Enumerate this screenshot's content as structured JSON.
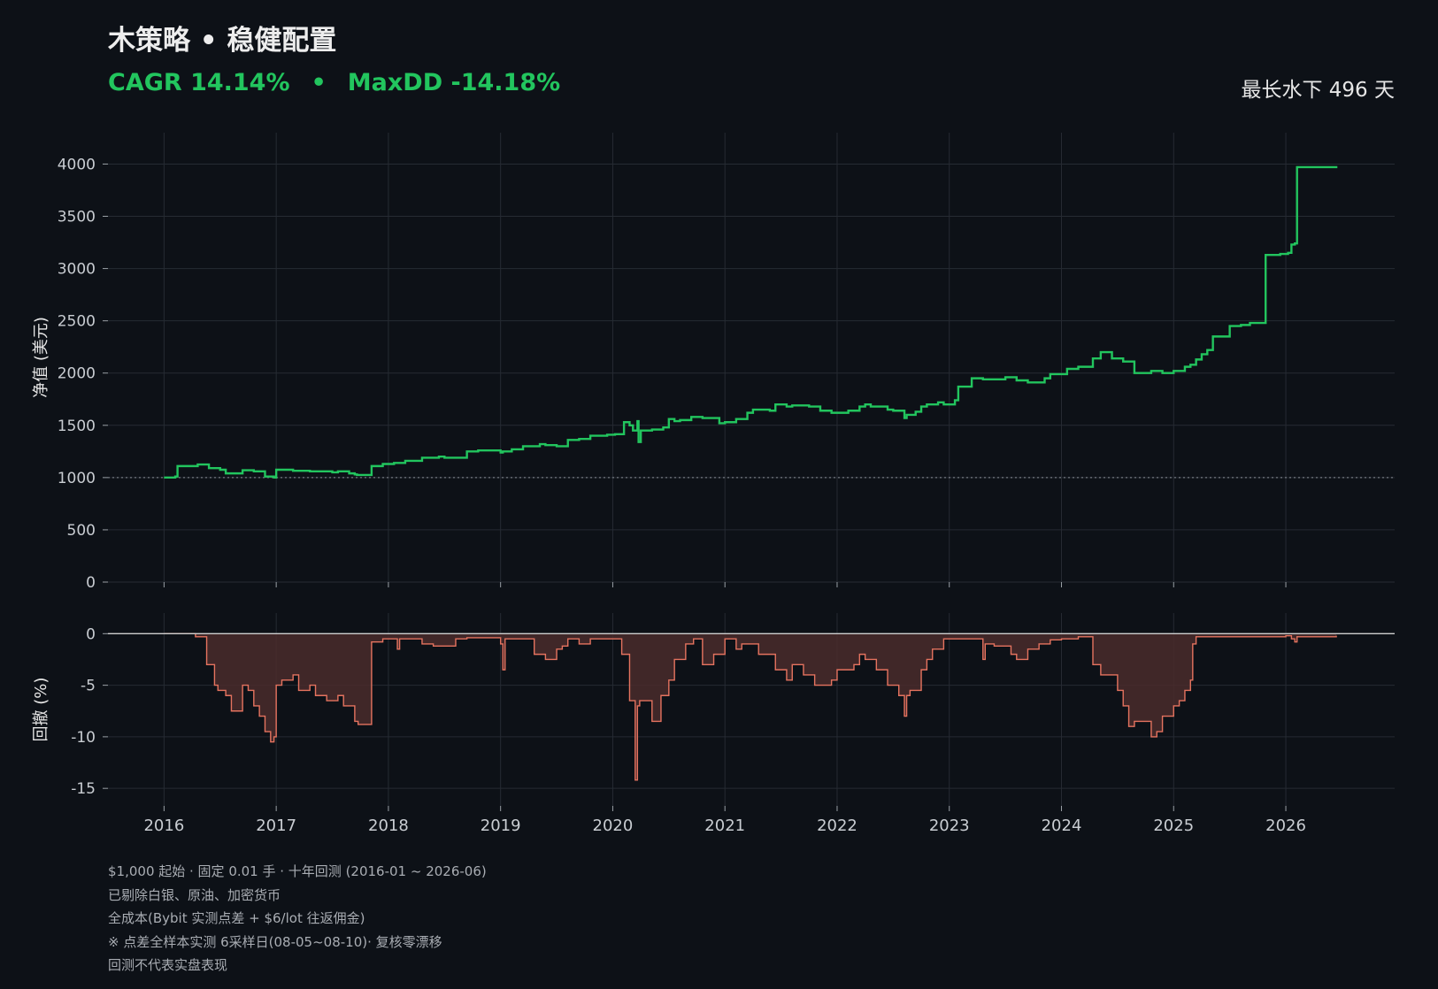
{
  "header": {
    "title": "木策略 • 稳健配置",
    "cagr": "CAGR 14.14%",
    "separator": "•",
    "maxdd": "MaxDD -14.18%",
    "underwater": "最长水下 496 天"
  },
  "footnotes": [
    "$1,000 起始 · 固定 0.01 手 · 十年回测 (2016-01 ~ 2026-06)",
    "已剔除白银、原油、加密货币",
    "全成本(Bybit 实测点差 + $6/lot 往返佣金)",
    "※ 点差全样本实测 6采样日(08-05~08-10)· 复核零漂移",
    "回测不代表实盘表现"
  ],
  "colors": {
    "background": "#0d1117",
    "equity_line": "#22c55e",
    "drawdown_line": "#e5735f",
    "drawdown_fill": "#4a2b2b",
    "grid": "#262b33",
    "text": "#e6e6e6"
  },
  "chart_data": [
    {
      "type": "line",
      "ylabel": "净值 (美元)",
      "xlabel": "",
      "xlim": [
        2015.5,
        2026.97
      ],
      "ylim": [
        0,
        4300
      ],
      "yticks": [
        0,
        500,
        1000,
        1500,
        2000,
        2500,
        3000,
        3500,
        4000
      ],
      "xticks": [
        2016,
        2017,
        2018,
        2019,
        2020,
        2021,
        2022,
        2023,
        2024,
        2025,
        2026
      ],
      "xtick_labels": [
        "2016",
        "2017",
        "2018",
        "2019",
        "2020",
        "2021",
        "2022",
        "2023",
        "2024",
        "2025",
        "2026"
      ],
      "reference_line": 1000,
      "grid": true,
      "series": [
        {
          "x": [
            2016.0,
            2016.1,
            2016.12,
            2016.3,
            2016.4,
            2016.5,
            2016.55,
            2016.7,
            2016.8,
            2016.9,
            2016.98,
            2017.0,
            2017.15,
            2017.3,
            2017.4,
            2017.5,
            2017.55,
            2017.65,
            2017.7,
            2017.72,
            2017.85,
            2017.95,
            2018.05,
            2018.15,
            2018.3,
            2018.45,
            2018.5,
            2018.7,
            2018.8,
            2019.0,
            2019.02,
            2019.1,
            2019.2,
            2019.35,
            2019.4,
            2019.5,
            2019.6,
            2019.7,
            2019.8,
            2019.95,
            2020.02,
            2020.1,
            2020.15,
            2020.18,
            2020.2,
            2020.22,
            2020.23,
            2020.25,
            2020.35,
            2020.45,
            2020.5,
            2020.55,
            2020.6,
            2020.7,
            2020.8,
            2020.95,
            2021.0,
            2021.1,
            2021.2,
            2021.25,
            2021.4,
            2021.45,
            2021.55,
            2021.6,
            2021.75,
            2021.85,
            2021.95,
            2022.0,
            2022.1,
            2022.2,
            2022.25,
            2022.3,
            2022.45,
            2022.5,
            2022.6,
            2022.62,
            2022.7,
            2022.75,
            2022.8,
            2022.9,
            2022.95,
            2023.05,
            2023.08,
            2023.2,
            2023.3,
            2023.5,
            2023.6,
            2023.7,
            2023.85,
            2023.9,
            2024.05,
            2024.15,
            2024.25,
            2024.28,
            2024.35,
            2024.45,
            2024.55,
            2024.65,
            2024.8,
            2024.9,
            2025.0,
            2025.1,
            2025.15,
            2025.2,
            2025.25,
            2025.3,
            2025.35,
            2025.5,
            2025.6,
            2025.68,
            2025.8,
            2025.82,
            2025.95,
            2026.02,
            2026.05,
            2026.08,
            2026.1,
            2026.2,
            2026.3,
            2026.45
          ],
          "values": [
            1000,
            1010,
            1110,
            1125,
            1090,
            1075,
            1040,
            1070,
            1060,
            1010,
            1000,
            1075,
            1065,
            1060,
            1060,
            1050,
            1060,
            1040,
            1030,
            1025,
            1110,
            1130,
            1140,
            1160,
            1190,
            1200,
            1190,
            1250,
            1260,
            1240,
            1250,
            1270,
            1300,
            1320,
            1310,
            1300,
            1360,
            1370,
            1400,
            1410,
            1415,
            1530,
            1500,
            1450,
            1450,
            1540,
            1340,
            1450,
            1460,
            1480,
            1560,
            1540,
            1550,
            1580,
            1570,
            1520,
            1530,
            1560,
            1620,
            1650,
            1640,
            1700,
            1680,
            1690,
            1680,
            1640,
            1620,
            1620,
            1640,
            1680,
            1700,
            1680,
            1650,
            1640,
            1570,
            1600,
            1630,
            1680,
            1700,
            1720,
            1700,
            1740,
            1870,
            1950,
            1940,
            1960,
            1930,
            1910,
            1950,
            1990,
            2040,
            2060,
            2060,
            2140,
            2200,
            2140,
            2110,
            2000,
            2020,
            2000,
            2020,
            2060,
            2080,
            2130,
            2180,
            2220,
            2350,
            2450,
            2460,
            2480,
            2480,
            3130,
            3140,
            3150,
            3230,
            3240,
            3970,
            3970,
            3970,
            3980
          ]
        }
      ]
    },
    {
      "type": "area",
      "ylabel": "回撤 (%)",
      "xlabel": "",
      "xlim": [
        2015.5,
        2026.97
      ],
      "ylim": [
        -16.7,
        2
      ],
      "yticks": [
        0,
        -5,
        -10,
        -15
      ],
      "ytick_labels": [
        "0",
        "-5",
        "-10",
        "-15"
      ],
      "xticks": [
        2016,
        2017,
        2018,
        2019,
        2020,
        2021,
        2022,
        2023,
        2024,
        2025,
        2026
      ],
      "xtick_labels": [
        "2016",
        "2017",
        "2018",
        "2019",
        "2020",
        "2021",
        "2022",
        "2023",
        "2024",
        "2025",
        "2026"
      ],
      "grid": true,
      "series": [
        {
          "x": [
            2016.0,
            2016.28,
            2016.38,
            2016.45,
            2016.48,
            2016.55,
            2016.6,
            2016.7,
            2016.75,
            2016.8,
            2016.85,
            2016.9,
            2016.95,
            2016.98,
            2017.0,
            2017.05,
            2017.15,
            2017.2,
            2017.3,
            2017.35,
            2017.45,
            2017.55,
            2017.6,
            2017.7,
            2017.73,
            2017.85,
            2017.95,
            2017.97,
            2018.08,
            2018.1,
            2018.3,
            2018.4,
            2018.6,
            2018.7,
            2019.0,
            2019.02,
            2019.04,
            2019.3,
            2019.4,
            2019.5,
            2019.55,
            2019.6,
            2019.7,
            2019.8,
            2020.0,
            2020.08,
            2020.15,
            2020.2,
            2020.22,
            2020.24,
            2020.28,
            2020.35,
            2020.43,
            2020.5,
            2020.55,
            2020.65,
            2020.72,
            2020.8,
            2020.9,
            2021.0,
            2021.05,
            2021.1,
            2021.15,
            2021.3,
            2021.45,
            2021.55,
            2021.6,
            2021.7,
            2021.8,
            2021.95,
            2022.0,
            2022.15,
            2022.2,
            2022.25,
            2022.35,
            2022.45,
            2022.55,
            2022.6,
            2022.62,
            2022.65,
            2022.75,
            2022.8,
            2022.85,
            2022.95,
            2023.05,
            2023.3,
            2023.32,
            2023.4,
            2023.55,
            2023.6,
            2023.7,
            2023.8,
            2023.9,
            2024.0,
            2024.05,
            2024.15,
            2024.25,
            2024.28,
            2024.35,
            2024.5,
            2024.55,
            2024.6,
            2024.65,
            2024.8,
            2024.85,
            2024.9,
            2025.0,
            2025.05,
            2025.1,
            2025.15,
            2025.17,
            2025.2,
            2026.0,
            2026.05,
            2026.08,
            2026.1,
            2026.45
          ],
          "values": [
            0,
            -0.3,
            -3.0,
            -5.0,
            -5.5,
            -6.0,
            -7.5,
            -5.0,
            -5.5,
            -7.0,
            -8.0,
            -9.5,
            -10.5,
            -10.0,
            -5.0,
            -4.5,
            -4.0,
            -5.5,
            -5.0,
            -6.0,
            -6.5,
            -6.0,
            -7.0,
            -8.5,
            -8.8,
            -0.8,
            -0.5,
            -0.5,
            -1.5,
            -0.5,
            -1.0,
            -1.2,
            -0.5,
            -0.4,
            -1.0,
            -3.5,
            -0.5,
            -2.0,
            -2.5,
            -1.5,
            -1.2,
            -0.5,
            -1.0,
            -0.5,
            -0.5,
            -2.0,
            -6.5,
            -14.2,
            -7.0,
            -6.5,
            -6.5,
            -8.5,
            -6.0,
            -4.5,
            -2.5,
            -1.0,
            -0.5,
            -3.0,
            -2.0,
            -0.5,
            -0.5,
            -1.5,
            -1.0,
            -2.0,
            -3.5,
            -4.5,
            -3.0,
            -4.0,
            -5.0,
            -4.5,
            -3.5,
            -3.0,
            -2.0,
            -2.5,
            -3.5,
            -5.0,
            -6.0,
            -8.0,
            -6.0,
            -5.5,
            -3.5,
            -2.5,
            -1.5,
            -0.5,
            -0.5,
            -2.5,
            -1.0,
            -1.2,
            -2.0,
            -2.5,
            -1.5,
            -1.0,
            -0.6,
            -0.5,
            -0.5,
            -0.3,
            -0.3,
            -3.0,
            -4.0,
            -5.5,
            -7.0,
            -9.0,
            -8.5,
            -10.0,
            -9.5,
            -8.0,
            -7.0,
            -6.5,
            -5.5,
            -4.5,
            -1.0,
            -0.3,
            -0.2,
            -0.5,
            -0.8,
            -0.3,
            -0.2
          ]
        }
      ]
    }
  ]
}
